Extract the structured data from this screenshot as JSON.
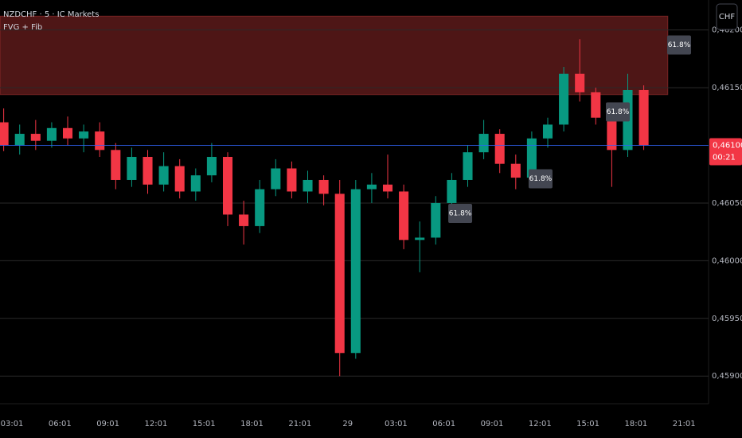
{
  "chart_data": {
    "type": "candlestick",
    "title": "NZDCHF · 5 · IC Markets",
    "subtitle": "FVG + Fib",
    "currency_button": "CHF",
    "x": [
      2.5,
      3.5,
      4.5,
      5.5,
      6.5,
      7.5,
      8.5,
      9.5,
      10.5,
      11.5,
      12.5,
      13.5,
      14.5,
      15.5,
      16.5,
      17.5,
      18.5,
      19.5,
      20.5,
      21.5,
      22.5,
      23.5,
      24.5,
      25.5,
      26.5,
      27.5,
      28.5,
      29.5,
      30.5,
      31.5,
      32.5,
      33.5,
      34.5,
      35.5,
      36.5,
      37.5,
      38.5,
      39.5,
      40.5,
      41.5,
      42.5
    ],
    "open": [
      0.4612,
      0.461,
      0.4611,
      0.46104,
      0.46115,
      0.46106,
      0.46112,
      0.46096,
      0.4607,
      0.4609,
      0.46066,
      0.46082,
      0.4606,
      0.46074,
      0.4609,
      0.4604,
      0.4603,
      0.46062,
      0.4608,
      0.4606,
      0.4607,
      0.46058,
      0.4592,
      0.46062,
      0.46066,
      0.4606,
      0.46018,
      0.4602,
      0.4605,
      0.4607,
      0.46094,
      0.4611,
      0.46084,
      0.46072,
      0.46106,
      0.46118,
      0.46162,
      0.46146,
      0.46124,
      0.46096,
      0.46148
    ],
    "high": [
      0.46132,
      0.46118,
      0.46122,
      0.4612,
      0.46125,
      0.46118,
      0.4612,
      0.46102,
      0.46098,
      0.46096,
      0.46094,
      0.46088,
      0.4608,
      0.46102,
      0.46094,
      0.46052,
      0.4607,
      0.46088,
      0.46086,
      0.46078,
      0.46074,
      0.4607,
      0.4607,
      0.46076,
      0.46092,
      0.46066,
      0.46034,
      0.46056,
      0.46076,
      0.461,
      0.46122,
      0.46114,
      0.46092,
      0.46112,
      0.46124,
      0.46168,
      0.46192,
      0.4615,
      0.4613,
      0.46162,
      0.46152
    ],
    "low": [
      0.46095,
      0.46092,
      0.46096,
      0.46098,
      0.461,
      0.46094,
      0.4609,
      0.46062,
      0.46064,
      0.46058,
      0.4606,
      0.46054,
      0.46052,
      0.46068,
      0.4603,
      0.46014,
      0.46024,
      0.46056,
      0.46054,
      0.4605,
      0.46048,
      0.459,
      0.45915,
      0.4605,
      0.46054,
      0.4601,
      0.4599,
      0.46014,
      0.46044,
      0.46064,
      0.46088,
      0.46076,
      0.46062,
      0.46068,
      0.46098,
      0.46112,
      0.46138,
      0.46118,
      0.46064,
      0.4609,
      0.46096
    ],
    "close": [
      0.461,
      0.4611,
      0.46104,
      0.46115,
      0.46106,
      0.46112,
      0.46096,
      0.4607,
      0.4609,
      0.46066,
      0.46082,
      0.4606,
      0.46074,
      0.4609,
      0.4604,
      0.4603,
      0.46062,
      0.4608,
      0.4606,
      0.4607,
      0.46058,
      0.4592,
      0.46062,
      0.46066,
      0.4606,
      0.46018,
      0.4602,
      0.4605,
      0.4607,
      0.46094,
      0.4611,
      0.46084,
      0.46072,
      0.46106,
      0.46118,
      0.46162,
      0.46146,
      0.46124,
      0.46096,
      0.46148,
      0.461
    ],
    "up_color": "#089981",
    "down_color": "#f23645",
    "xlim": [
      2.27,
      46.55
    ],
    "xticks": [
      {
        "value": 3.0167,
        "label": "03:01"
      },
      {
        "value": 6.0167,
        "label": "06:01"
      },
      {
        "value": 9.0167,
        "label": "09:01"
      },
      {
        "value": 12.0167,
        "label": "12:01"
      },
      {
        "value": 15.0167,
        "label": "15:01"
      },
      {
        "value": 18.0167,
        "label": "18:01"
      },
      {
        "value": 21.0167,
        "label": "21:01"
      },
      {
        "value": 24,
        "label": "29"
      },
      {
        "value": 27.0167,
        "label": "03:01"
      },
      {
        "value": 30.0167,
        "label": "06:01"
      },
      {
        "value": 33.0167,
        "label": "09:01"
      },
      {
        "value": 36.0167,
        "label": "12:01"
      },
      {
        "value": 39.0167,
        "label": "15:01"
      },
      {
        "value": 42.0167,
        "label": "18:01"
      },
      {
        "value": 45.0167,
        "label": "21:01"
      }
    ],
    "ylim": [
      0.45876,
      0.46226
    ],
    "yticks": [
      {
        "value": 0.462,
        "label": "0,46200"
      },
      {
        "value": 0.4615,
        "label": "0,46150"
      },
      {
        "value": 0.461,
        "label": "0,46100"
      },
      {
        "value": 0.4605,
        "label": "0,46050"
      },
      {
        "value": 0.46,
        "label": "0,46000"
      },
      {
        "value": 0.4595,
        "label": "0,45950"
      },
      {
        "value": 0.459,
        "label": "0,45900"
      }
    ],
    "grid": true,
    "fvg_zone": {
      "x_end": 44.0,
      "top": 0.46212,
      "bottom": 0.46144,
      "color": "#5c1a1a"
    },
    "annotations": [
      {
        "text": "61.8%",
        "x": 44.66,
        "y": 0.46187
      },
      {
        "text": "61.8%",
        "x": 40.83,
        "y": 0.46129
      },
      {
        "text": "61.8%",
        "x": 36.0,
        "y": 0.46071
      },
      {
        "text": "61.8%",
        "x": 30.98,
        "y": 0.46041
      }
    ],
    "last_price": {
      "value": 0.461,
      "label": "0,46100",
      "countdown": "00:21",
      "color": "#f23645"
    }
  }
}
